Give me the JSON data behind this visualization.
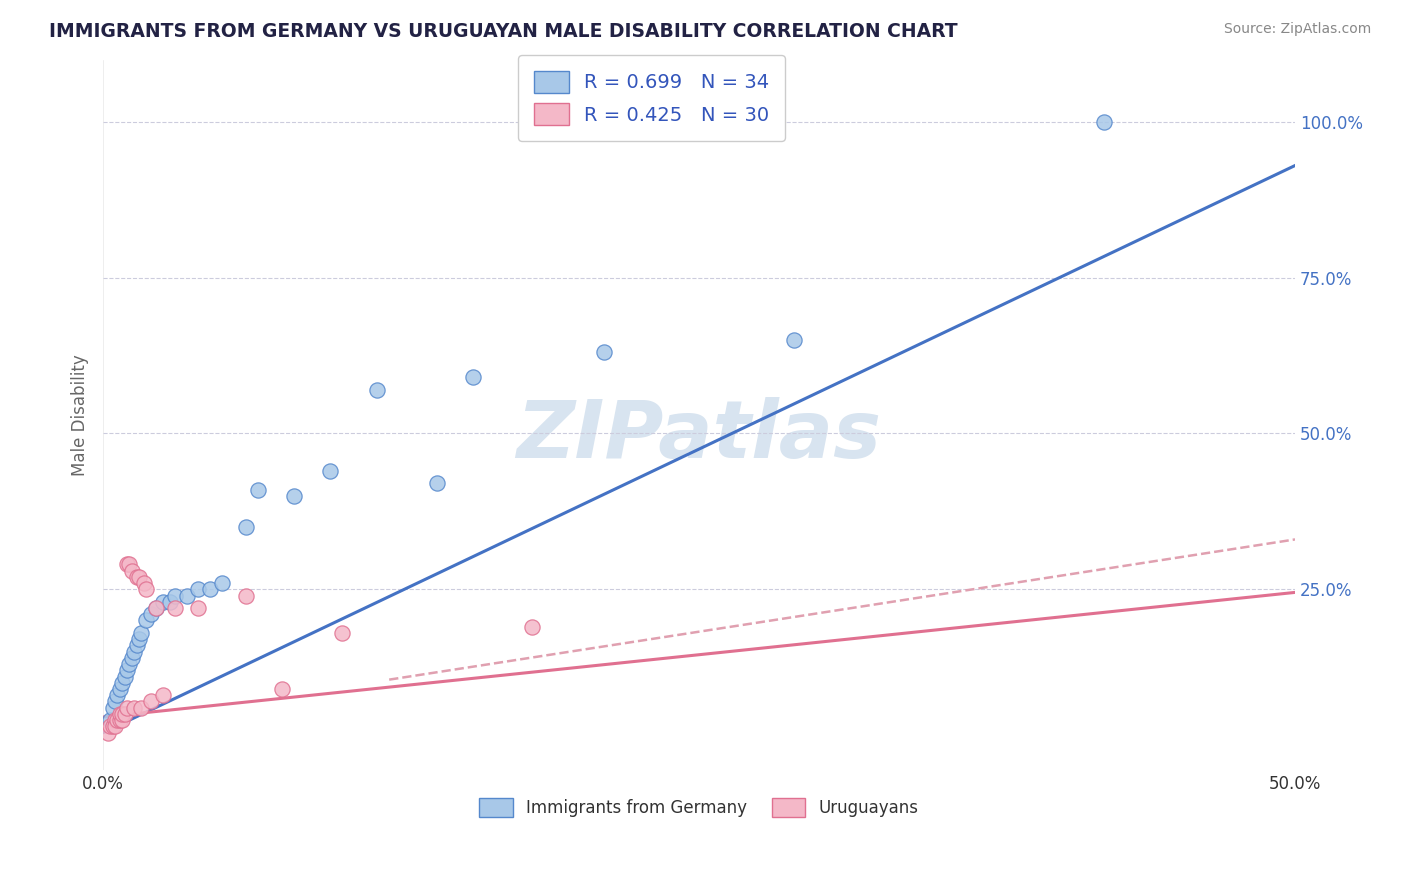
{
  "title": "IMMIGRANTS FROM GERMANY VS URUGUAYAN MALE DISABILITY CORRELATION CHART",
  "source": "Source: ZipAtlas.com",
  "ylabel": "Male Disability",
  "xlim": [
    0.0,
    0.5
  ],
  "ylim": [
    -0.04,
    1.1
  ],
  "ytick_labels": [
    "25.0%",
    "50.0%",
    "75.0%",
    "100.0%"
  ],
  "ytick_vals": [
    0.25,
    0.5,
    0.75,
    1.0
  ],
  "xtick_vals": [
    0.0,
    0.5
  ],
  "xtick_labels": [
    "0.0%",
    "50.0%"
  ],
  "legend_r1": "R = 0.699",
  "legend_n1": "N = 34",
  "legend_r2": "R = 0.425",
  "legend_n2": "N = 30",
  "blue_fill": "#a8c8e8",
  "pink_fill": "#f4b8c8",
  "blue_edge": "#5588cc",
  "pink_edge": "#e07090",
  "line_blue": "#4472c4",
  "line_pink": "#e07090",
  "line_dashed_color": "#e0a0b0",
  "watermark_color": "#d8e4f0",
  "title_color": "#222244",
  "axis_label_color": "#666666",
  "tick_color_right": "#4472c4",
  "scatter_blue": [
    [
      0.003,
      0.04
    ],
    [
      0.004,
      0.06
    ],
    [
      0.005,
      0.07
    ],
    [
      0.006,
      0.08
    ],
    [
      0.007,
      0.09
    ],
    [
      0.008,
      0.1
    ],
    [
      0.009,
      0.11
    ],
    [
      0.01,
      0.12
    ],
    [
      0.011,
      0.13
    ],
    [
      0.012,
      0.14
    ],
    [
      0.013,
      0.15
    ],
    [
      0.014,
      0.16
    ],
    [
      0.015,
      0.17
    ],
    [
      0.016,
      0.18
    ],
    [
      0.018,
      0.2
    ],
    [
      0.02,
      0.21
    ],
    [
      0.022,
      0.22
    ],
    [
      0.025,
      0.23
    ],
    [
      0.028,
      0.23
    ],
    [
      0.03,
      0.24
    ],
    [
      0.035,
      0.24
    ],
    [
      0.04,
      0.25
    ],
    [
      0.045,
      0.25
    ],
    [
      0.05,
      0.26
    ],
    [
      0.06,
      0.35
    ],
    [
      0.065,
      0.41
    ],
    [
      0.08,
      0.4
    ],
    [
      0.095,
      0.44
    ],
    [
      0.115,
      0.57
    ],
    [
      0.14,
      0.42
    ],
    [
      0.155,
      0.59
    ],
    [
      0.21,
      0.63
    ],
    [
      0.29,
      0.65
    ],
    [
      0.42,
      1.0
    ]
  ],
  "scatter_pink": [
    [
      0.002,
      0.02
    ],
    [
      0.003,
      0.03
    ],
    [
      0.004,
      0.03
    ],
    [
      0.005,
      0.04
    ],
    [
      0.005,
      0.03
    ],
    [
      0.006,
      0.04
    ],
    [
      0.007,
      0.04
    ],
    [
      0.007,
      0.05
    ],
    [
      0.008,
      0.04
    ],
    [
      0.008,
      0.05
    ],
    [
      0.009,
      0.05
    ],
    [
      0.01,
      0.06
    ],
    [
      0.01,
      0.29
    ],
    [
      0.011,
      0.29
    ],
    [
      0.012,
      0.28
    ],
    [
      0.013,
      0.06
    ],
    [
      0.014,
      0.27
    ],
    [
      0.015,
      0.27
    ],
    [
      0.016,
      0.06
    ],
    [
      0.017,
      0.26
    ],
    [
      0.018,
      0.25
    ],
    [
      0.02,
      0.07
    ],
    [
      0.022,
      0.22
    ],
    [
      0.025,
      0.08
    ],
    [
      0.03,
      0.22
    ],
    [
      0.04,
      0.22
    ],
    [
      0.06,
      0.24
    ],
    [
      0.075,
      0.09
    ],
    [
      0.1,
      0.18
    ],
    [
      0.18,
      0.19
    ]
  ],
  "blue_trendline": [
    [
      0.0,
      0.02
    ],
    [
      0.5,
      0.93
    ]
  ],
  "pink_trendline": [
    [
      0.0,
      0.045
    ],
    [
      0.5,
      0.245
    ]
  ],
  "pink_dashed_line": [
    [
      0.12,
      0.105
    ],
    [
      0.5,
      0.33
    ]
  ]
}
